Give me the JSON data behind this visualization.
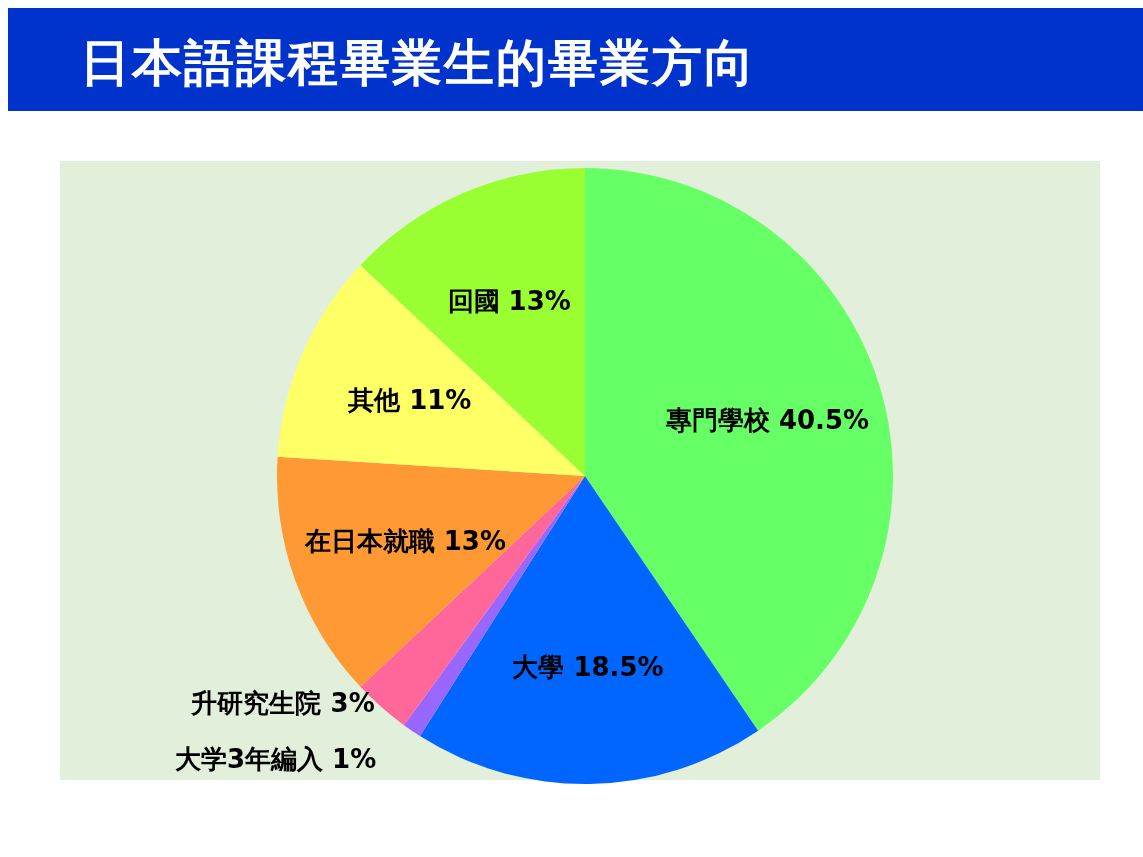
{
  "chart_data": {
    "type": "pie",
    "title": "日本語課程畢業生的畢業方向",
    "categories": [
      "專門學校",
      "大學",
      "大学3年編入",
      "升研究生院",
      "在日本就職",
      "其他",
      "回國"
    ],
    "values": [
      40.5,
      18.5,
      1,
      3,
      13,
      11,
      13
    ],
    "colors": [
      "#66ff66",
      "#0066ff",
      "#9966ff",
      "#ff6699",
      "#ff9933",
      "#ffff66",
      "#99ff33"
    ],
    "value_labels": [
      "40.5%",
      "18.5%",
      "1%",
      "3%",
      "13%",
      "11%",
      "13%"
    ],
    "legend": false
  }
}
